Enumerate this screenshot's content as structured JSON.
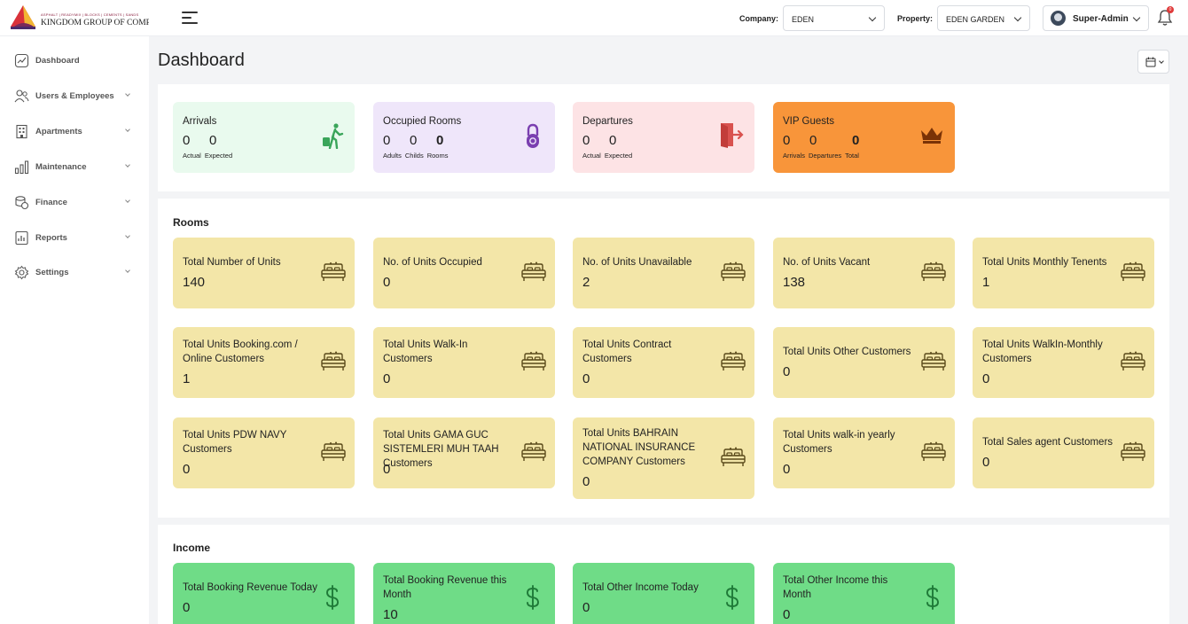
{
  "brand": {
    "tagline": "ASPHALT | READYMIX | BLOCKS | CEMENTS | SANDS",
    "name": "KINGDOM GROUP OF COMPANIES"
  },
  "header": {
    "company_label": "Company:",
    "company_value": "EDEN",
    "property_label": "Property:",
    "property_value": "EDEN GARDEN",
    "user_name": "Super-Admin",
    "notification_count": "0"
  },
  "sidebar": {
    "items": [
      {
        "label": "Dashboard",
        "icon": "chart-line-icon"
      },
      {
        "label": "Users & Employees",
        "icon": "users-icon"
      },
      {
        "label": "Apartments",
        "icon": "building-icon"
      },
      {
        "label": "Maintenance",
        "icon": "bar-chart-icon"
      },
      {
        "label": "Finance",
        "icon": "coins-icon"
      },
      {
        "label": "Reports",
        "icon": "report-icon"
      },
      {
        "label": "Settings",
        "icon": "gear-icon"
      }
    ]
  },
  "main": {
    "title": "Dashboard"
  },
  "stats": [
    {
      "title": "Arrivals",
      "values": [
        "0",
        "0"
      ],
      "labels": [
        "Actual",
        "Expected"
      ],
      "bg": "#e9faee",
      "icon": "arrival-icon"
    },
    {
      "title": "Occupied Rooms",
      "values": [
        "0",
        "0",
        "0"
      ],
      "labels": [
        "Adults",
        "Childs",
        "Rooms"
      ],
      "bg": "#efe6fa",
      "icon": "door-hanger-icon"
    },
    {
      "title": "Departures",
      "values": [
        "0",
        "0"
      ],
      "labels": [
        "Actual",
        "Expected"
      ],
      "bg": "#fde3e5",
      "icon": "exit-icon"
    },
    {
      "title": "VIP Guests",
      "values": [
        "0",
        "0",
        "0"
      ],
      "labels": [
        "Arrivals",
        "Departures",
        "Total"
      ],
      "bg": "#f8953a",
      "icon": "crown-icon"
    }
  ],
  "rooms": {
    "title": "Rooms",
    "cards": [
      {
        "title": "Total Number of Units",
        "value": "140"
      },
      {
        "title": "No. of Units Occupied",
        "value": "0"
      },
      {
        "title": "No. of Units Unavailable",
        "value": "2"
      },
      {
        "title": "No. of Units Vacant",
        "value": "138"
      },
      {
        "title": "Total Units Monthly Tenents",
        "value": "1"
      },
      {
        "title": "Total Units Booking.com / Online Customers",
        "value": "1"
      },
      {
        "title": "Total Units Walk-In Customers",
        "value": "0"
      },
      {
        "title": "Total Units Contract Customers",
        "value": "0"
      },
      {
        "title": "Total Units Other Customers",
        "value": "0"
      },
      {
        "title": "Total Units WalkIn-Monthly Customers",
        "value": "0"
      },
      {
        "title": "Total Units PDW NAVY Customers",
        "value": "0"
      },
      {
        "title": "Total Units GAMA GUC SISTEMLERI MUH TAAH Customers",
        "value": "0"
      },
      {
        "title": "Total Units BAHRAIN NATIONAL INSURANCE COMPANY Customers",
        "value": "0"
      },
      {
        "title": "Total Units walk-in yearly Customers",
        "value": "0"
      },
      {
        "title": "Total Sales agent Customers",
        "value": "0"
      }
    ],
    "card_bg": "#f3e6a8",
    "icon": "bed-icon"
  },
  "income": {
    "title": "Income",
    "cards": [
      {
        "title": "Total Booking Revenue Today",
        "value": "0"
      },
      {
        "title": "Total Booking Revenue this Month",
        "value": "10"
      },
      {
        "title": "Total Other Income Today",
        "value": "0"
      },
      {
        "title": "Total Other Income this Month",
        "value": "0"
      }
    ],
    "card_bg": "#6fdc87",
    "icon": "dollar-icon"
  }
}
